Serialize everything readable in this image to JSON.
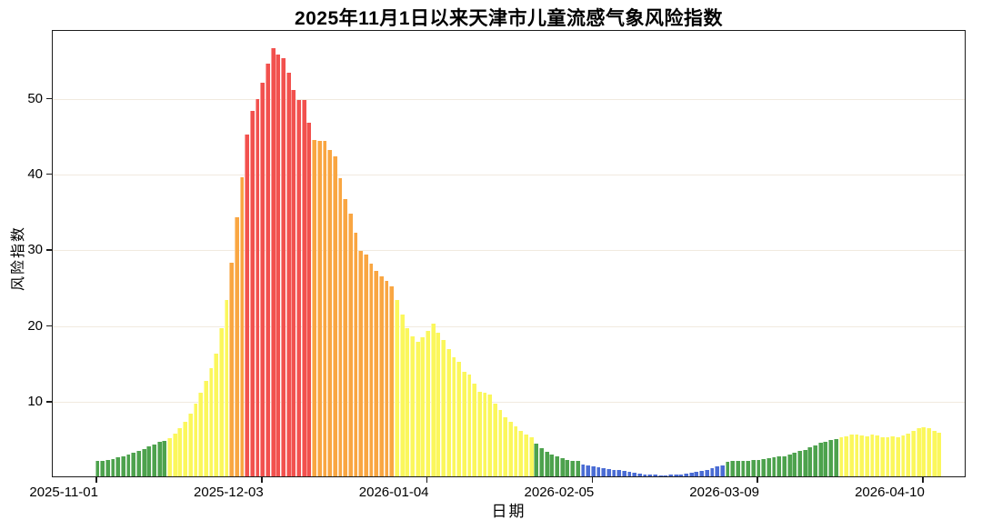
{
  "chart_data": {
    "type": "bar",
    "title": "2025年11月1日以来天津市儿童流感气象风险指数",
    "xlabel": "日期",
    "ylabel": "风险指数",
    "grid": true,
    "legend_position": "none",
    "ylim": [
      0,
      59
    ],
    "y_ticks": [
      10,
      20,
      30,
      40,
      50
    ],
    "x_tick_labels": [
      "2025-11-01",
      "2025-12-03",
      "2026-01-04",
      "2026-02-05",
      "2026-03-09",
      "2026-04-10"
    ],
    "x_tick_day_indices": [
      0,
      32,
      64,
      96,
      128,
      160
    ],
    "start_date": "2025-11-01",
    "frequency": "daily",
    "total_days": 164,
    "risk_level_colors": {
      "b": "#4a6cd4",
      "g": "#4da24d",
      "y": "#fbf75c",
      "o": "#f9a642",
      "r": "#f2514e"
    },
    "segments": [
      {
        "level": "g",
        "values": [
          2.0,
          2.1,
          2.2,
          2.3,
          2.5,
          2.7,
          2.9,
          3.1,
          3.3,
          3.6,
          3.9,
          4.2,
          4.5,
          4.7
        ]
      },
      {
        "level": "y",
        "values": [
          5.0,
          5.6,
          6.3,
          7.2,
          8.3,
          9.6,
          11.0,
          12.6,
          14.3,
          16.2,
          19.5,
          23.3
        ]
      },
      {
        "level": "o",
        "values": [
          28.2,
          34.2,
          39.4
        ]
      },
      {
        "level": "r",
        "values": [
          45.1,
          48.2,
          49.8,
          51.9,
          54.5,
          56.5,
          55.7,
          55.2,
          53.3,
          51.0,
          49.7,
          49.6,
          46.6
        ]
      },
      {
        "level": "o",
        "values": [
          44.4,
          44.3,
          44.2,
          43.0,
          42.2,
          39.3,
          36.6,
          34.6,
          32.1,
          29.7,
          29.3,
          28.1,
          27.1,
          26.4,
          25.8,
          25.1
        ]
      },
      {
        "level": "y",
        "values": [
          23.3,
          21.4,
          19.6,
          18.5,
          17.8,
          18.4,
          19.2,
          20.2,
          19.0,
          18.0,
          16.8,
          15.7,
          15.1,
          13.8,
          13.4,
          12.2,
          11.2,
          11.0,
          10.8,
          9.6,
          8.7,
          7.8,
          7.2,
          6.6,
          6.0,
          5.5,
          5.1
        ]
      },
      {
        "level": "g",
        "values": [
          4.3,
          3.7,
          3.2,
          2.9,
          2.6,
          2.4,
          2.2,
          2.1,
          2.0
        ]
      },
      {
        "level": "b",
        "values": [
          1.6,
          1.5,
          1.3,
          1.2,
          1.1,
          1.0,
          0.9,
          0.8,
          0.7,
          0.6,
          0.5,
          0.4,
          0.3,
          0.25,
          0.2,
          0.15,
          0.15,
          0.2,
          0.25,
          0.3,
          0.4,
          0.5,
          0.6,
          0.7,
          0.9,
          1.1,
          1.3,
          1.5
        ]
      },
      {
        "level": "g",
        "values": [
          1.9,
          2.0,
          2.0,
          2.1,
          2.1,
          2.2,
          2.2,
          2.3,
          2.4,
          2.5,
          2.6,
          2.7,
          2.9,
          3.1,
          3.3,
          3.5,
          3.8,
          4.1,
          4.4,
          4.6,
          4.8,
          4.9
        ]
      },
      {
        "level": "y",
        "values": [
          5.1,
          5.3,
          5.5,
          5.5,
          5.4,
          5.3,
          5.5,
          5.4,
          5.2,
          5.2,
          5.3,
          5.2,
          5.4,
          5.6,
          6.0,
          6.3,
          6.5,
          6.4,
          6.0,
          5.7
        ]
      }
    ]
  }
}
